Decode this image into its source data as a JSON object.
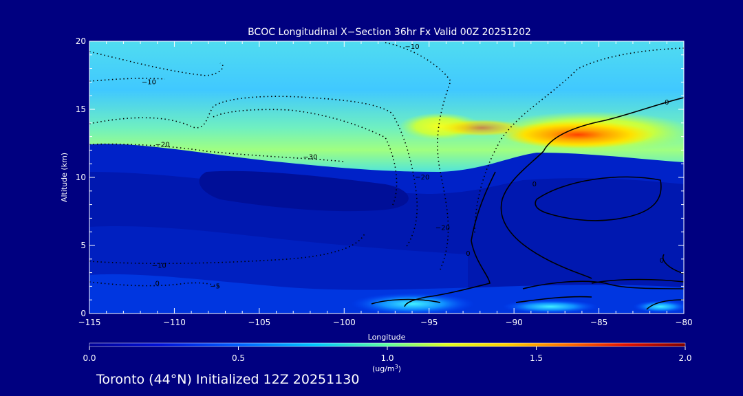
{
  "chart_data": {
    "type": "heatmap",
    "title": "BCOC Longitudinal X−Section 36hr  Fx Valid 00Z 20251202",
    "xlabel": "Longitude",
    "ylabel": "Altitude (km)",
    "xlim": [
      -115,
      -80
    ],
    "ylim": [
      0,
      20
    ],
    "x_ticks": [
      -115,
      -110,
      -105,
      -100,
      -95,
      -90,
      -85,
      -80
    ],
    "x_tick_labels": [
      "−115",
      "−110",
      "−105",
      "−100",
      "−95",
      "−90",
      "−85",
      "−80"
    ],
    "y_ticks": [
      0,
      5,
      10,
      15,
      20
    ],
    "y_tick_labels": [
      "0",
      "5",
      "10",
      "15",
      "20"
    ],
    "colorbar": {
      "min": 0.0,
      "max": 2.0,
      "ticks": [
        0.0,
        0.5,
        1.0,
        1.5,
        2.0
      ],
      "tick_labels": [
        "0.0",
        "0.5",
        "1.0",
        "1.5",
        "2.0"
      ],
      "unit_line1": "(ug/m",
      "unit_sup": "3",
      "unit_line2": ")"
    },
    "contour_labels": [
      {
        "text": "−10",
        "lon": -111.5,
        "alt": 17.0
      },
      {
        "text": "−10",
        "lon": -96.0,
        "alt": 19.6
      },
      {
        "text": "−20",
        "lon": -110.7,
        "alt": 12.4
      },
      {
        "text": "−30",
        "lon": -102.0,
        "alt": 11.5
      },
      {
        "text": "−20",
        "lon": -95.4,
        "alt": 10.0
      },
      {
        "text": "−20",
        "lon": -94.2,
        "alt": 6.3
      },
      {
        "text": "0",
        "lon": -81.0,
        "alt": 15.5
      },
      {
        "text": "0",
        "lon": -88.8,
        "alt": 9.5
      },
      {
        "text": "0",
        "lon": -92.7,
        "alt": 4.4
      },
      {
        "text": "0",
        "lon": -81.3,
        "alt": 3.9
      },
      {
        "text": "−10",
        "lon": -110.9,
        "alt": 3.5
      },
      {
        "text": "0",
        "lon": -111.0,
        "alt": 2.2
      },
      {
        "text": "−5",
        "lon": -107.6,
        "alt": 2.0
      }
    ]
  },
  "footer": "Toronto (44°N) Initialized 12Z 20251130"
}
